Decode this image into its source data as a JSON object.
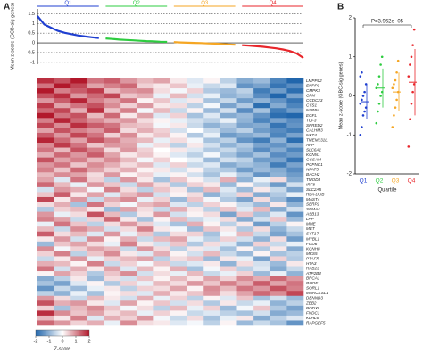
{
  "chart_data": [
    {
      "type": "line",
      "label": "A",
      "ylabel": "Mean z-score (GCB-sig genes)",
      "xlim": [
        1,
        40
      ],
      "ylim": [
        -1.1,
        1.75
      ],
      "yticks": [
        1.5,
        1,
        0.5,
        0,
        -0.5,
        -1
      ],
      "grid": true,
      "series": [
        {
          "name": "Q1",
          "color": "#1f3fd0",
          "x": [
            1,
            2,
            3,
            4,
            5,
            6,
            7,
            8,
            9,
            10
          ],
          "values": [
            1.38,
            0.95,
            0.78,
            0.62,
            0.52,
            0.45,
            0.38,
            0.33,
            0.29,
            0.25
          ]
        },
        {
          "name": "Q2",
          "color": "#2ecc40",
          "x": [
            11,
            12,
            13,
            14,
            15,
            16,
            17,
            18,
            19,
            20
          ],
          "values": [
            0.23,
            0.2,
            0.17,
            0.15,
            0.13,
            0.11,
            0.09,
            0.08,
            0.06,
            0.05
          ]
        },
        {
          "name": "Q3",
          "color": "#f5a623",
          "x": [
            21,
            22,
            23,
            24,
            25,
            26,
            27,
            28,
            29,
            30
          ],
          "values": [
            0.04,
            0.02,
            0.01,
            0,
            -0.01,
            -0.03,
            -0.04,
            -0.06,
            -0.08,
            -0.1
          ]
        },
        {
          "name": "Q4",
          "color": "#e8262b",
          "x": [
            31,
            32,
            33,
            34,
            35,
            36,
            37,
            38,
            39,
            40
          ],
          "values": [
            -0.12,
            -0.14,
            -0.17,
            -0.2,
            -0.24,
            -0.28,
            -0.34,
            -0.42,
            -0.55,
            -0.78
          ]
        }
      ]
    },
    {
      "type": "heatmap",
      "clim": [
        -2,
        2
      ],
      "colorbar_ticks": [
        -2,
        -1,
        0,
        1,
        2
      ],
      "colorbar_label": "Z-score",
      "rows": [
        "LMPPL2",
        "ENPP3",
        "CMPK3",
        "CPM",
        "CCDC23",
        "CYS1",
        "NLRP4",
        "EGFL",
        "TCF3",
        "SPRED2",
        "CALHM3",
        "NKT4",
        "TMEM131L",
        "APP",
        "SLC6A1",
        "KCNN1",
        "GCSAM",
        "PCPNC1",
        "NFAT5",
        "BACH2",
        "TMOD3",
        "IRF8",
        "SLC2A5",
        "HLA-DOB",
        "MAST4",
        "SERP2",
        "SEMA4",
        "ASB13",
        "LPP",
        "MME",
        "MET",
        "SYT17",
        "MYBL1",
        "FGD6",
        "KCNH8",
        "MKS5",
        "PTAFR",
        "HTA3",
        "RAB23",
        "ATP2B4",
        "BRCA1",
        "RHOF",
        "SORL1",
        "MARCKSL1",
        "DENND3",
        "ZEB2",
        "PODXL",
        "FNDC1",
        "KLHL6",
        "RAPGEF5"
      ],
      "values": [
        [
          1.8,
          1.5,
          2,
          1.2,
          1.4,
          0.9,
          0.6,
          0.8,
          0.2,
          -0.3,
          0.1,
          -0.6,
          -1.1,
          -0.9,
          -1.6,
          -2
        ],
        [
          1.2,
          2,
          1.6,
          0.8,
          1.1,
          1.3,
          0.4,
          0.2,
          0.5,
          -0.2,
          -0.5,
          -0.3,
          -1.4,
          -1.2,
          -1.8,
          -1.5
        ],
        [
          2,
          1.1,
          1.4,
          1.7,
          0.6,
          0.9,
          1,
          0.3,
          -0.1,
          0.4,
          -0.7,
          -0.9,
          -0.6,
          -1.7,
          -1.3,
          -1.9
        ],
        [
          1.5,
          1.8,
          0.9,
          1.3,
          1.6,
          0.5,
          0.7,
          -0.2,
          0.6,
          -0.4,
          -0.2,
          -1,
          -0.8,
          -1.5,
          -2,
          -1.2
        ],
        [
          0.9,
          1.4,
          1.9,
          1.1,
          0.8,
          1.2,
          0.1,
          0.5,
          -0.3,
          0.2,
          -0.8,
          -0.5,
          -1.3,
          -1,
          -1.4,
          -1.8
        ],
        [
          1.7,
          0.8,
          1.2,
          1.5,
          1,
          0.4,
          0.9,
          0.2,
          0.3,
          -0.6,
          -0.1,
          -1.2,
          -0.7,
          -1.9,
          -1.1,
          -1.6
        ],
        [
          1.3,
          1.6,
          0.7,
          1.8,
          0.5,
          1.1,
          -0.1,
          0.6,
          -0.5,
          0.1,
          -0.9,
          -0.4,
          -1.5,
          -0.8,
          -1.7,
          -1.3
        ],
        [
          2,
          1.2,
          1.5,
          0.6,
          1.3,
          0.2,
          0.8,
          -0.3,
          0.4,
          -0.8,
          -0.3,
          -1.1,
          -0.9,
          -1.4,
          -1.9,
          -2
        ],
        [
          1.1,
          1.9,
          1.3,
          1,
          0.7,
          0.9,
          0.3,
          0.1,
          -0.2,
          -0.4,
          -0.6,
          -0.2,
          -1,
          -1.6,
          -1.2,
          -1.5
        ],
        [
          1.6,
          1,
          1.8,
          1.4,
          1.2,
          0.6,
          0.5,
          -0.1,
          0.2,
          -0.5,
          -1,
          -0.7,
          -1.2,
          -1.1,
          -1.8,
          -1.4
        ],
        [
          0.8,
          1.5,
          1.1,
          0.9,
          1.4,
          0.3,
          0.7,
          0.4,
          -0.4,
          0,
          -0.5,
          -0.9,
          -0.6,
          -1.3,
          -1.5,
          -1.7
        ],
        [
          1.4,
          0.9,
          1.6,
          1.2,
          0.4,
          1,
          0.2,
          0.5,
          0.1,
          -0.7,
          -0.2,
          -1.3,
          -1.1,
          -0.9,
          -1.6,
          -1.2
        ],
        [
          1.9,
          1.3,
          0.8,
          1.5,
          1.1,
          0.7,
          0.6,
          -0.2,
          0.3,
          -0.1,
          -0.8,
          -0.6,
          -1.4,
          -1.7,
          -1,
          -1.9
        ],
        [
          1,
          1.7,
          1.2,
          0.5,
          0.9,
          0.8,
          -0.2,
          0.3,
          -0.6,
          0.2,
          -0.4,
          -1,
          -0.7,
          -1.2,
          -1.4,
          -1.1
        ],
        [
          1.2,
          0.6,
          1.5,
          1.1,
          0.3,
          0.9,
          0.4,
          0,
          0.2,
          -0.3,
          -0.7,
          -0.5,
          -0.9,
          -1.5,
          -1.1,
          -1.6
        ],
        [
          0.7,
          1.3,
          0.9,
          1.4,
          0.8,
          0.2,
          0.5,
          0.1,
          -0.3,
          -0.6,
          -0.1,
          -0.8,
          -1.2,
          -0.8,
          -1.5,
          -1.3
        ],
        [
          1.5,
          0.8,
          1.1,
          0.6,
          1,
          0.6,
          -0.1,
          0.4,
          0,
          -0.2,
          -0.9,
          -0.4,
          -0.6,
          -1.3,
          -1.2,
          -1.8
        ],
        [
          0.9,
          1.2,
          0.5,
          1,
          0.7,
          0.3,
          0.6,
          -0.3,
          0.4,
          -0.5,
          -0.3,
          -1.1,
          -0.8,
          -1,
          -1.7,
          -1.2
        ],
        [
          1.1,
          0.5,
          1.3,
          0.8,
          0.4,
          0.7,
          0.1,
          0.2,
          -0.4,
          0.1,
          -0.6,
          -0.7,
          -1.3,
          -0.9,
          -1.1,
          -1.5
        ],
        [
          0.6,
          1,
          0.8,
          0.3,
          0.9,
          0.1,
          0.4,
          -0.2,
          0.1,
          -0.4,
          -0.8,
          -0.2,
          -0.7,
          -1.4,
          -1,
          -1.3
        ],
        [
          0.8,
          -0.3,
          1.2,
          0.4,
          -0.6,
          0.9,
          0.2,
          -0.8,
          0.5,
          0.1,
          -0.4,
          0.7,
          -1,
          -0.2,
          0.3,
          -1.1
        ],
        [
          1.3,
          0.6,
          -0.2,
          0.9,
          0.5,
          -0.5,
          0.8,
          0.3,
          -0.7,
          0.4,
          0.2,
          -0.9,
          0.1,
          -0.6,
          -1.3,
          -0.4
        ],
        [
          -0.4,
          0.9,
          0.7,
          -0.1,
          1.1,
          0.3,
          -0.6,
          0.5,
          0.2,
          -0.8,
          0.6,
          -0.3,
          -0.9,
          0.2,
          -0.5,
          -1.2
        ],
        [
          0.5,
          1.4,
          0.2,
          0.8,
          -0.3,
          0.6,
          0.9,
          -0.4,
          0.1,
          0.3,
          -1,
          -0.5,
          0.4,
          -1.1,
          -0.7,
          -0.2
        ],
        [
          1.6,
          0.2,
          0.9,
          -0.5,
          0.7,
          1,
          -0.2,
          0.4,
          -0.9,
          0.5,
          -0.1,
          -0.7,
          -1.2,
          0.3,
          -0.9,
          -1.5
        ],
        [
          0.3,
          0.7,
          -0.8,
          1.2,
          0.4,
          -0.1,
          0.6,
          0.8,
          -0.3,
          -0.6,
          0.4,
          0.1,
          -0.5,
          -0.9,
          0.2,
          -1
        ],
        [
          -0.7,
          0.4,
          0.6,
          0.2,
          -0.9,
          0.8,
          0.3,
          -0.5,
          0.7,
          0.2,
          -0.6,
          0.5,
          -0.3,
          0.6,
          -1.1,
          -0.4
        ],
        [
          0.9,
          -0.2,
          0.3,
          1.5,
          0.6,
          -0.7,
          0.2,
          0.9,
          -0.4,
          0.1,
          0.3,
          -1.2,
          0.5,
          -0.8,
          -0.3,
          -1.4
        ],
        [
          1.1,
          0.8,
          -0.5,
          0.4,
          1.3,
          0.2,
          -0.8,
          0.1,
          0.6,
          -0.5,
          -0.2,
          0.3,
          -1.1,
          -0.4,
          0.5,
          -0.9
        ],
        [
          -0.2,
          1.2,
          0.5,
          -0.6,
          0.3,
          0.9,
          0.4,
          -0.3,
          -0.8,
          0.7,
          0.1,
          -0.6,
          0.2,
          -1.3,
          -0.6,
          0.1
        ],
        [
          0.6,
          -0.5,
          1,
          0.7,
          -0.4,
          0.3,
          1.1,
          0.2,
          -0.1,
          -0.9,
          0.5,
          0.2,
          -0.7,
          0.3,
          -1,
          -0.5
        ],
        [
          1.4,
          0.3,
          0.6,
          -0.3,
          0.9,
          -0.2,
          0.5,
          -0.7,
          0.3,
          0.4,
          -0.8,
          -0.1,
          0.6,
          -0.5,
          -1.2,
          -0.8
        ],
        [
          0.2,
          0.9,
          -0.4,
          1,
          0.1,
          0.7,
          -0.5,
          0.6,
          0.8,
          -0.2,
          -0.6,
          0.4,
          -0.4,
          -1,
          0.3,
          -1.3
        ],
        [
          -0.9,
          0.5,
          0.8,
          0.3,
          -0.2,
          1.1,
          0.2,
          -0.4,
          0.5,
          -0.7,
          0.3,
          -0.3,
          -1,
          0.4,
          -0.5,
          -0.2
        ],
        [
          1,
          -0.1,
          0.4,
          0.8,
          0.6,
          -0.5,
          0.9,
          0.3,
          -0.6,
          0.2,
          -0.3,
          -0.8,
          0.1,
          -0.7,
          0.2,
          -1.1
        ],
        [
          0.4,
          1.1,
          -0.6,
          0.5,
          1,
          0.2,
          -0.3,
          0.7,
          0.1,
          -0.4,
          0.6,
          -0.5,
          -0.9,
          0.1,
          -0.8,
          -0.6
        ],
        [
          -0.5,
          0.2,
          0.9,
          -0.2,
          0.4,
          0.6,
          0.8,
          -0.6,
          0.3,
          0.5,
          -0.9,
          0.2,
          -0.2,
          -1.2,
          0.4,
          -0.7
        ],
        [
          0.7,
          0.6,
          0.1,
          1.1,
          -0.5,
          0.4,
          -0.1,
          0.5,
          -0.5,
          -0.3,
          0.2,
          -1,
          0.3,
          -0.4,
          -0.9,
          0.2
        ],
        [
          1.2,
          -0.4,
          0.7,
          0.2,
          0.8,
          -0.3,
          0.6,
          0.1,
          0.7,
          -0.8,
          -0.1,
          0.4,
          -0.6,
          -0.3,
          -1.1,
          -0.5
        ],
        [
          0.1,
          0.8,
          0.4,
          -0.7,
          0.5,
          1,
          -0.4,
          0.3,
          -0.2,
          0.6,
          -0.5,
          -0.2,
          0.4,
          -0.9,
          -0.2,
          -1
        ],
        [
          -1.1,
          -0.6,
          0.2,
          -0.9,
          0.3,
          -0.4,
          0.5,
          0.1,
          0.6,
          0.2,
          0.8,
          0.4,
          1,
          0.7,
          1.3,
          0.9
        ],
        [
          -0.8,
          -1.2,
          -0.3,
          0.1,
          -0.7,
          0.4,
          -0.2,
          0.6,
          0.3,
          0.9,
          0.5,
          1.1,
          0.7,
          1.4,
          0.8,
          1.2
        ],
        [
          -1.4,
          -0.5,
          -0.9,
          -0.2,
          0.2,
          -0.6,
          0.4,
          0.3,
          0.8,
          0.1,
          1,
          0.6,
          1.2,
          0.9,
          1.5,
          1.1
        ],
        [
          -0.6,
          -1,
          -0.2,
          -0.8,
          0.1,
          0.3,
          -0.3,
          0.7,
          0.2,
          0.5,
          0.9,
          0.3,
          0.8,
          1.3,
          1,
          1.6
        ],
        [
          0.9,
          0.3,
          -0.5,
          0.6,
          0.2,
          -0.4,
          0.7,
          -0.2,
          0.4,
          -0.6,
          0.1,
          -0.3,
          0.5,
          -0.8,
          -0.4,
          -0.9
        ],
        [
          1.5,
          0.7,
          0.9,
          0.2,
          -0.3,
          0.8,
          0.1,
          0.5,
          -0.4,
          0.3,
          -0.7,
          0.2,
          -0.5,
          -0.2,
          -1,
          -0.6
        ],
        [
          0.4,
          -0.8,
          0.6,
          1,
          0.5,
          -0.1,
          0.3,
          -0.6,
          0.6,
          -0.2,
          0.4,
          -0.9,
          -0.1,
          0.5,
          -0.7,
          -1.2
        ],
        [
          1.8,
          1,
          0.5,
          0.8,
          0.3,
          0.6,
          -0.2,
          0.4,
          0.1,
          -0.5,
          -0.3,
          -0.6,
          -0.8,
          -0.4,
          -1.1,
          -0.9
        ],
        [
          0.6,
          0.2,
          1.1,
          -0.3,
          0.7,
          0.4,
          0.9,
          -0.1,
          -0.5,
          0.3,
          -0.8,
          -0.2,
          0.2,
          -1.1,
          -0.6,
          -0.3
        ],
        [
          1.3,
          0.9,
          0.4,
          0.7,
          -0.2,
          1,
          0.3,
          0.2,
          -0.3,
          -0.1,
          -0.6,
          0.1,
          -0.9,
          -0.5,
          -0.8,
          -1.4
        ]
      ]
    },
    {
      "type": "strip",
      "label": "B",
      "ylabel": "Mean z-score (GBC-sig genes)",
      "xlabel": "Quartile",
      "annotation": "P=3.962e−05",
      "ylim": [
        -2,
        2
      ],
      "yticks": [
        -2,
        -1,
        0,
        1,
        2
      ],
      "series": [
        {
          "name": "Q1",
          "color": "#1f3fd0",
          "values": [
            -1,
            -0.8,
            -0.5,
            -0.4,
            -0.3,
            -0.2,
            -0.1,
            0,
            0.1,
            0.3,
            0.5,
            0.6
          ],
          "mean": -0.15,
          "sd": 0.45
        },
        {
          "name": "Q2",
          "color": "#2ecc40",
          "values": [
            -0.7,
            -0.4,
            -0.2,
            0,
            0.1,
            0.2,
            0.3,
            0.5,
            0.8,
            1
          ],
          "mean": 0.2,
          "sd": 0.5
        },
        {
          "name": "Q3",
          "color": "#f5a623",
          "values": [
            -0.8,
            -0.5,
            -0.3,
            -0.1,
            0.1,
            0.2,
            0.3,
            0.4,
            0.6,
            0.9
          ],
          "mean": 0.1,
          "sd": 0.5
        },
        {
          "name": "Q4",
          "color": "#e8262b",
          "values": [
            -1.3,
            -0.6,
            -0.2,
            0.1,
            0.3,
            0.5,
            0.8,
            1,
            1.3,
            1.7
          ],
          "mean": 0.35,
          "sd": 0.85
        }
      ]
    }
  ]
}
